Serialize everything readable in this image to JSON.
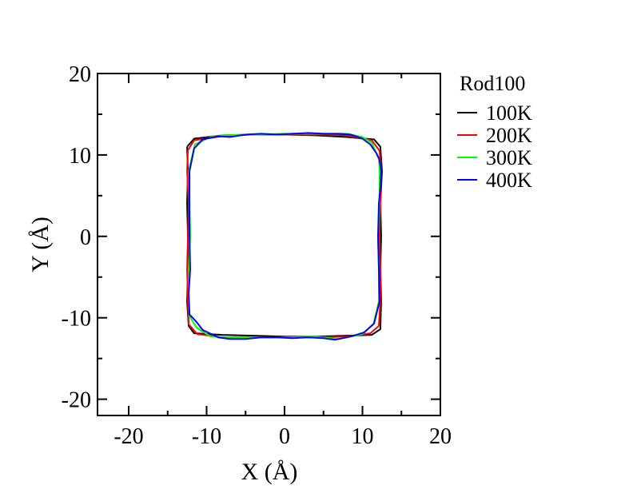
{
  "chart_data": {
    "type": "line",
    "title": "",
    "xlabel": "X (Å)",
    "ylabel": "Y (Å)",
    "xlim": [
      -24,
      20
    ],
    "ylim": [
      -22,
      20
    ],
    "x_ticks": [
      -20,
      -10,
      0,
      10,
      20
    ],
    "y_ticks": [
      -20,
      -10,
      0,
      10,
      20
    ],
    "x_tick_labels": [
      "-20",
      "-10",
      "0",
      "10",
      "20"
    ],
    "y_tick_labels": [
      "-20",
      "-10",
      "0",
      "10",
      "20"
    ],
    "grid": false,
    "legend_title": "Rod100",
    "legend_position": "right-outside-top",
    "series": [
      {
        "name": "100K",
        "color": "#000000",
        "points": [
          [
            -12.5,
            11
          ],
          [
            -11.6,
            12.0
          ],
          [
            -8,
            12.4
          ],
          [
            -4,
            12.5
          ],
          [
            0,
            12.5
          ],
          [
            4,
            12.4
          ],
          [
            8,
            12.2
          ],
          [
            11.5,
            11.9
          ],
          [
            12.3,
            11
          ],
          [
            12.5,
            8
          ],
          [
            12.3,
            4
          ],
          [
            12.4,
            0
          ],
          [
            12.3,
            -4
          ],
          [
            12.4,
            -8
          ],
          [
            12.3,
            -11.4
          ],
          [
            11.2,
            -12.1
          ],
          [
            8,
            -12.2
          ],
          [
            4,
            -12.3
          ],
          [
            0,
            -12.3
          ],
          [
            -4,
            -12.2
          ],
          [
            -8,
            -12.1
          ],
          [
            -11.6,
            -11.9
          ],
          [
            -12.3,
            -11
          ],
          [
            -12.5,
            -8
          ],
          [
            -12.4,
            -4
          ],
          [
            -12.4,
            0
          ],
          [
            -12.5,
            4
          ],
          [
            -12.4,
            8
          ],
          [
            -12.5,
            11
          ]
        ]
      },
      {
        "name": "200K",
        "color": "#ff0000",
        "points": [
          [
            -12.4,
            10.6
          ],
          [
            -11.6,
            11.8
          ],
          [
            -8,
            12.3
          ],
          [
            -4,
            12.5
          ],
          [
            0,
            12.5
          ],
          [
            4,
            12.5
          ],
          [
            8,
            12.4
          ],
          [
            11.2,
            11.8
          ],
          [
            12.2,
            10.5
          ],
          [
            12.4,
            8
          ],
          [
            12.3,
            4
          ],
          [
            12.2,
            0
          ],
          [
            12.3,
            -4
          ],
          [
            12.3,
            -8
          ],
          [
            12.1,
            -11
          ],
          [
            11,
            -11.9
          ],
          [
            8,
            -12.3
          ],
          [
            4,
            -12.4
          ],
          [
            0,
            -12.4
          ],
          [
            -4,
            -12.4
          ],
          [
            -8,
            -12.4
          ],
          [
            -11.2,
            -12
          ],
          [
            -12.3,
            -10.8
          ],
          [
            -12.4,
            -8
          ],
          [
            -12.5,
            -4
          ],
          [
            -12.4,
            0
          ],
          [
            -12.3,
            4
          ],
          [
            -12.5,
            8
          ],
          [
            -12.4,
            10.6
          ]
        ]
      },
      {
        "name": "300K",
        "color": "#00ff00",
        "points": [
          [
            -12.3,
            8
          ],
          [
            -11.5,
            11.3
          ],
          [
            -9.5,
            12.2
          ],
          [
            -8,
            12.4
          ],
          [
            -4,
            12.5
          ],
          [
            0,
            12.6
          ],
          [
            4,
            12.6
          ],
          [
            8,
            12.6
          ],
          [
            10,
            12.2
          ],
          [
            11.2,
            11.5
          ],
          [
            12.1,
            9.5
          ],
          [
            12.2,
            8
          ],
          [
            12.2,
            4
          ],
          [
            12,
            0
          ],
          [
            12.1,
            -4
          ],
          [
            12.1,
            -8
          ],
          [
            11.4,
            -10.8
          ],
          [
            10,
            -12
          ],
          [
            7,
            -12.6
          ],
          [
            4,
            -12.3
          ],
          [
            0,
            -12.4
          ],
          [
            -4,
            -12.4
          ],
          [
            -7,
            -12.4
          ],
          [
            -9.5,
            -12.3
          ],
          [
            -11.3,
            -11.2
          ],
          [
            -12.2,
            -9.8
          ],
          [
            -12.3,
            -8
          ],
          [
            -12.3,
            -4
          ],
          [
            -12.1,
            0
          ],
          [
            -12.2,
            4
          ],
          [
            -12.3,
            8
          ]
        ]
      },
      {
        "name": "400K",
        "color": "#0000ff",
        "points": [
          [
            -12.2,
            8
          ],
          [
            -11.6,
            10.8
          ],
          [
            -10.5,
            11.9
          ],
          [
            -8.5,
            12.3
          ],
          [
            -7,
            12.2
          ],
          [
            -5,
            12.5
          ],
          [
            -3,
            12.6
          ],
          [
            -1,
            12.5
          ],
          [
            1,
            12.6
          ],
          [
            3,
            12.7
          ],
          [
            5,
            12.6
          ],
          [
            7,
            12.6
          ],
          [
            8.5,
            12.5
          ],
          [
            10,
            12.0
          ],
          [
            11,
            11.3
          ],
          [
            11.8,
            10.2
          ],
          [
            12.2,
            9.4
          ],
          [
            12.4,
            8
          ],
          [
            12.3,
            6
          ],
          [
            12.1,
            4
          ],
          [
            12.0,
            0
          ],
          [
            12.1,
            -4
          ],
          [
            12.2,
            -8
          ],
          [
            11.5,
            -10.7
          ],
          [
            10.2,
            -11.8
          ],
          [
            8.5,
            -12.3
          ],
          [
            6.5,
            -12.7
          ],
          [
            5,
            -12.5
          ],
          [
            3,
            -12.4
          ],
          [
            1,
            -12.5
          ],
          [
            -1,
            -12.4
          ],
          [
            -3,
            -12.4
          ],
          [
            -5,
            -12.6
          ],
          [
            -7,
            -12.6
          ],
          [
            -8.5,
            -12.4
          ],
          [
            -10.5,
            -11.5
          ],
          [
            -11.3,
            -10.5
          ],
          [
            -12.2,
            -9.6
          ],
          [
            -12.3,
            -7
          ],
          [
            -12.1,
            -4
          ],
          [
            -12.2,
            0
          ],
          [
            -12.2,
            4
          ],
          [
            -12.2,
            8
          ]
        ]
      }
    ]
  }
}
